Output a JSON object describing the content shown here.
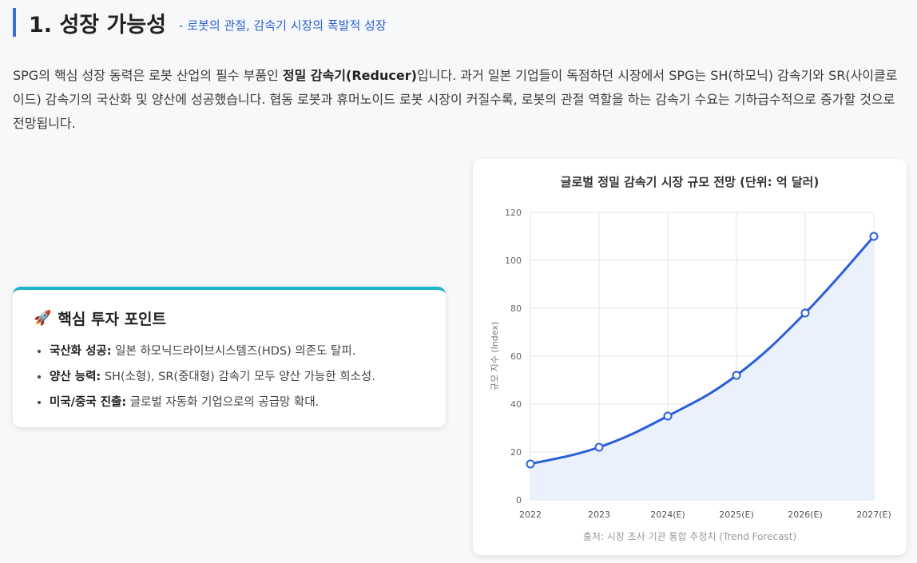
{
  "header": {
    "title": "1. 성장 가능성",
    "subtitle": "- 로봇의 관절, 감속기 시장의 폭발적 성장"
  },
  "intro": {
    "part1": "SPG의 핵심 성장 동력은 로봇 산업의 필수 부품인 ",
    "bold": "정밀 감속기(Reducer)",
    "part2": "입니다. 과거 일본 기업들이 독점하던 시장에서 SPG는 SH(하모닉) 감속기와 SR(사이클로이드) 감속기의 국산화 및 양산에 성공했습니다. 협동 로봇과 휴머노이드 로봇 시장이 커질수록, 로봇의 관절 역할을 하는 감속기 수요는 기하급수적으로 증가할 것으로 전망됩니다."
  },
  "investment": {
    "icon": "🚀",
    "title": "핵심 투자 포인트",
    "points": [
      {
        "label": "국산화 성공:",
        "text": " 일본 하모닉드라이브시스템즈(HDS) 의존도 탈피."
      },
      {
        "label": "양산 능력:",
        "text": " SH(소형), SR(중대형) 감속기 모두 양산 가능한 희소성."
      },
      {
        "label": "미국/중국 진출:",
        "text": " 글로벌 자동화 기업으로의 공급망 확대."
      }
    ]
  },
  "colors": {
    "accent": "#3a6fd8",
    "line": "#2b5fd9",
    "fill": "#e6edfb",
    "card_top": "#1fb3c9"
  },
  "chart_data": {
    "type": "area",
    "title": "글로벌 정밀 감속기 시장 규모 전망 (단위: 억 달러)",
    "ylabel": "규모 지수 (Index)",
    "xlabel": "",
    "categories": [
      "2022",
      "2023",
      "2024(E)",
      "2025(E)",
      "2026(E)",
      "2027(E)"
    ],
    "values": [
      15,
      22,
      35,
      52,
      78,
      110
    ],
    "ylim": [
      0,
      120
    ],
    "yticks": [
      0,
      20,
      40,
      60,
      80,
      100,
      120
    ],
    "grid": true,
    "source": "출처: 시장 조사 기관 통합 추정치 (Trend Forecast)"
  }
}
